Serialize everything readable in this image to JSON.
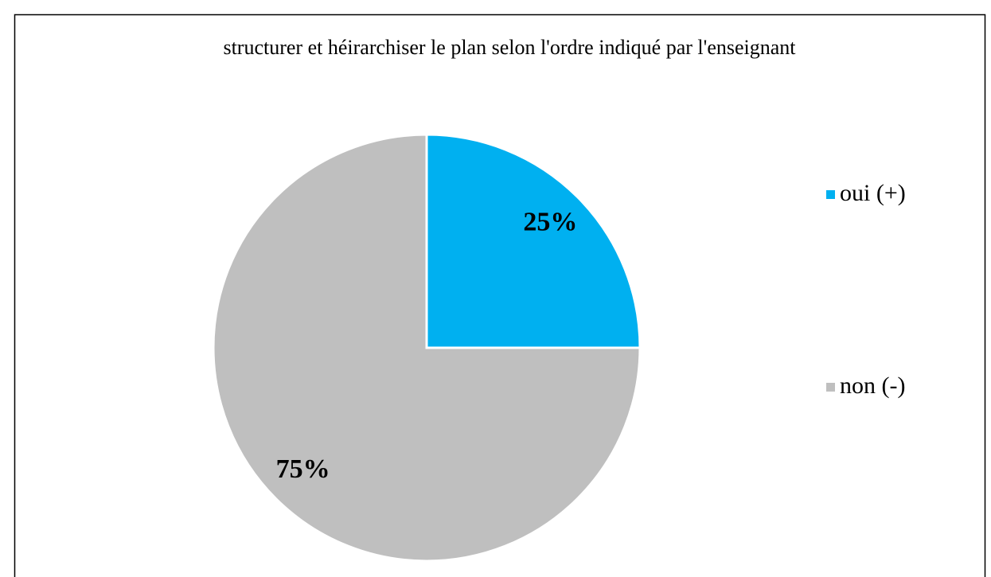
{
  "chart_data": {
    "type": "pie",
    "title": "structurer et héirarchiser le plan selon l'ordre indiqué par l'enseignant",
    "categories": [
      "oui (+)",
      "non (-)"
    ],
    "values": [
      25,
      75
    ],
    "value_labels": [
      "25%",
      "75%"
    ],
    "colors": [
      "#00b0f0",
      "#bfbfbf"
    ],
    "legend": "right"
  }
}
